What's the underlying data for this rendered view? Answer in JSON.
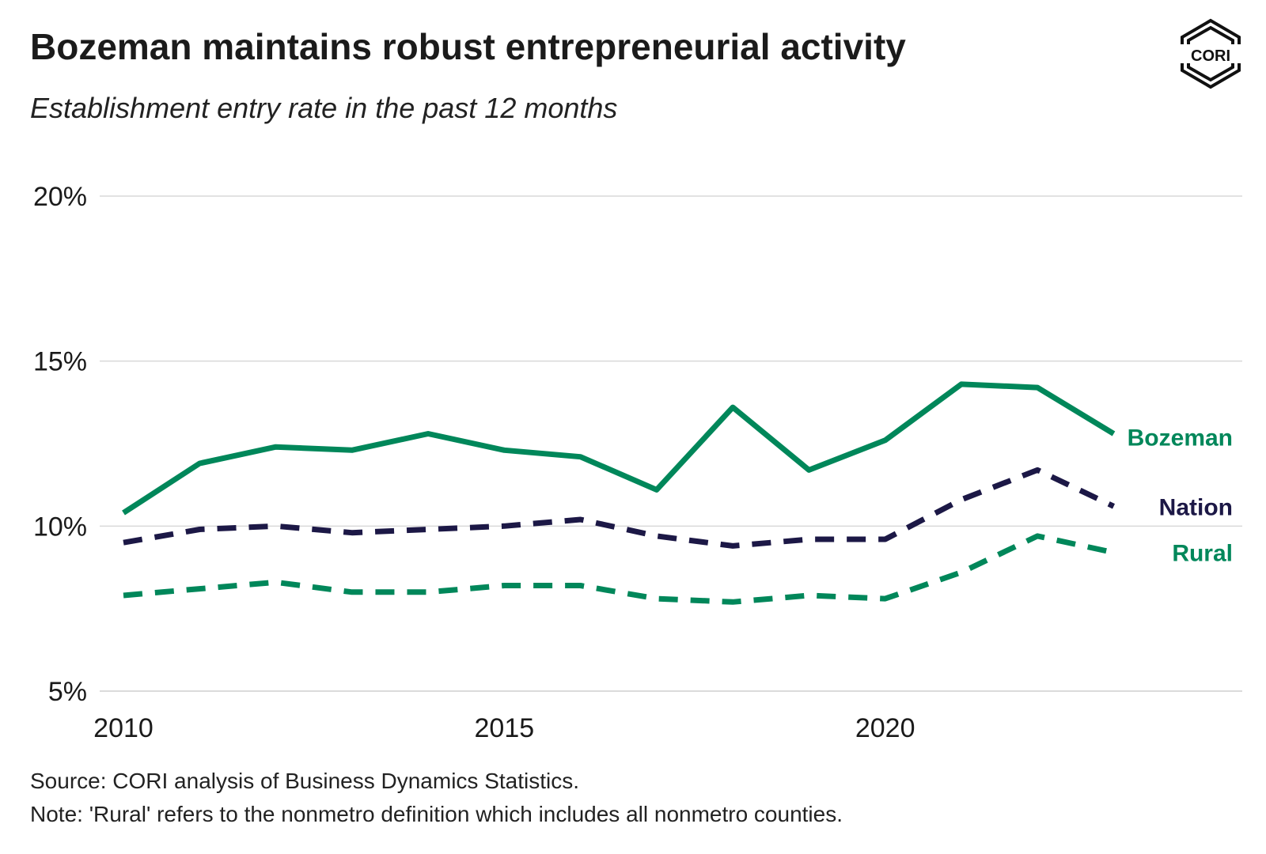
{
  "header": {
    "title": "Bozeman maintains robust entrepreneurial activity",
    "subtitle": "Establishment entry rate in the past 12 months",
    "logo_text": "CORI"
  },
  "footer": {
    "source": "Source: CORI analysis of Business Dynamics Statistics.",
    "note": "Note: 'Rural' refers to the nonmetro definition which includes all nonmetro counties."
  },
  "colors": {
    "green": "#00875a",
    "navy": "#1c1846",
    "grid": "#d9d9d9"
  },
  "chart_data": {
    "type": "line",
    "title": "Establishment entry rate in the past 12 months",
    "xlabel": "",
    "ylabel": "",
    "xlim": [
      2010,
      2025
    ],
    "ylim": [
      5,
      20
    ],
    "x_ticks": [
      2010,
      2015,
      2020
    ],
    "x_tick_labels": [
      "2010",
      "2015",
      "2020"
    ],
    "y_ticks": [
      5,
      10,
      15,
      20
    ],
    "y_tick_labels": [
      "5%",
      "10%",
      "15%",
      "20%"
    ],
    "grid": "horizontal",
    "x": [
      2010,
      2011,
      2012,
      2013,
      2014,
      2015,
      2016,
      2017,
      2018,
      2019,
      2020,
      2021,
      2022,
      2023
    ],
    "series": [
      {
        "name": "Bozeman",
        "label": "Bozeman",
        "style": "solid",
        "color": "#00875a",
        "values": [
          10.4,
          11.9,
          12.4,
          12.3,
          12.8,
          12.3,
          12.1,
          11.1,
          13.6,
          11.7,
          12.6,
          14.3,
          14.2,
          12.8
        ]
      },
      {
        "name": "Nation",
        "label": "Nation",
        "style": "dashed",
        "color": "#1c1846",
        "values": [
          9.5,
          9.9,
          10.0,
          9.8,
          9.9,
          10.0,
          10.2,
          9.7,
          9.4,
          9.6,
          9.6,
          10.8,
          11.7,
          10.6
        ]
      },
      {
        "name": "Rural",
        "label": "Rural",
        "style": "dashed",
        "color": "#00875a",
        "values": [
          7.9,
          8.1,
          8.3,
          8.0,
          8.0,
          8.2,
          8.2,
          7.8,
          7.7,
          7.9,
          7.8,
          8.6,
          9.7,
          9.2
        ]
      }
    ]
  }
}
